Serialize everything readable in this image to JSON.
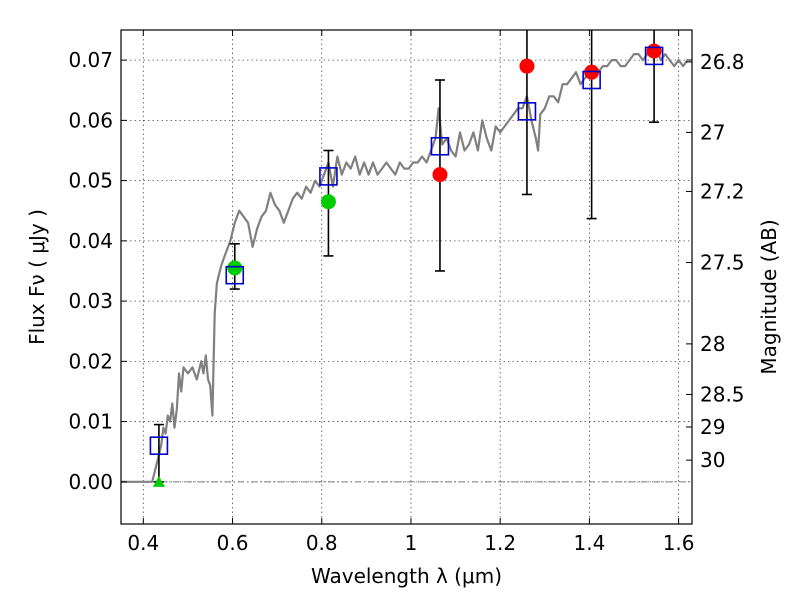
{
  "chart_data": {
    "type": "scatter",
    "title": "",
    "xlabel": "Wavelength  λ (μm)",
    "ylabel": "Flux  Fν  ( μJy )",
    "ylabel_right": "Magnitude (AB)",
    "xlim": [
      0.35,
      1.63
    ],
    "ylim": [
      -0.007,
      0.075
    ],
    "grid": true,
    "xticks": [
      0.4,
      0.6,
      0.8,
      1.0,
      1.2,
      1.4,
      1.6
    ],
    "xtick_labels": [
      "0.4",
      "0.6",
      "0.8",
      "1",
      "1.2",
      "1.4",
      "1.6"
    ],
    "yticks": [
      0.0,
      0.01,
      0.02,
      0.03,
      0.04,
      0.05,
      0.06,
      0.07
    ],
    "ytick_labels": [
      "0.00",
      "0.01",
      "0.02",
      "0.03",
      "0.04",
      "0.05",
      "0.06",
      "0.07"
    ],
    "right_ticks": [
      {
        "label": "26.8",
        "flux": 0.0697
      },
      {
        "label": "27",
        "flux": 0.058
      },
      {
        "label": "27.2",
        "flux": 0.0482
      },
      {
        "label": "27.5",
        "flux": 0.0364
      },
      {
        "label": "28",
        "flux": 0.0229
      },
      {
        "label": "28.5",
        "flux": 0.0145
      },
      {
        "label": "29",
        "flux": 0.0091
      },
      {
        "label": "30",
        "flux": 0.0036
      }
    ],
    "model_spectrum": {
      "color": "#808080",
      "points": [
        [
          0.35,
          0.0
        ],
        [
          0.41,
          0.0
        ],
        [
          0.42,
          0.0
        ],
        [
          0.43,
          0.003
        ],
        [
          0.44,
          0.006
        ],
        [
          0.445,
          0.009
        ],
        [
          0.45,
          0.008
        ],
        [
          0.455,
          0.011
        ],
        [
          0.46,
          0.01
        ],
        [
          0.465,
          0.013
        ],
        [
          0.47,
          0.009
        ],
        [
          0.475,
          0.012
        ],
        [
          0.48,
          0.018
        ],
        [
          0.485,
          0.015
        ],
        [
          0.49,
          0.019
        ],
        [
          0.5,
          0.018
        ],
        [
          0.51,
          0.019
        ],
        [
          0.52,
          0.017
        ],
        [
          0.53,
          0.02
        ],
        [
          0.535,
          0.018
        ],
        [
          0.54,
          0.021
        ],
        [
          0.545,
          0.017
        ],
        [
          0.55,
          0.016
        ],
        [
          0.555,
          0.011
        ],
        [
          0.56,
          0.028
        ],
        [
          0.565,
          0.033
        ],
        [
          0.575,
          0.036
        ],
        [
          0.585,
          0.038
        ],
        [
          0.595,
          0.04
        ],
        [
          0.605,
          0.043
        ],
        [
          0.615,
          0.045
        ],
        [
          0.625,
          0.044
        ],
        [
          0.635,
          0.043
        ],
        [
          0.645,
          0.039
        ],
        [
          0.655,
          0.042
        ],
        [
          0.665,
          0.044
        ],
        [
          0.675,
          0.045
        ],
        [
          0.685,
          0.048
        ],
        [
          0.695,
          0.046
        ],
        [
          0.705,
          0.045
        ],
        [
          0.715,
          0.043
        ],
        [
          0.725,
          0.045
        ],
        [
          0.735,
          0.047
        ],
        [
          0.745,
          0.048
        ],
        [
          0.755,
          0.047
        ],
        [
          0.765,
          0.049
        ],
        [
          0.775,
          0.048
        ],
        [
          0.785,
          0.05
        ],
        [
          0.795,
          0.049
        ],
        [
          0.805,
          0.051
        ],
        [
          0.815,
          0.053
        ],
        [
          0.825,
          0.049
        ],
        [
          0.835,
          0.054
        ],
        [
          0.845,
          0.051
        ],
        [
          0.855,
          0.053
        ],
        [
          0.865,
          0.052
        ],
        [
          0.875,
          0.054
        ],
        [
          0.885,
          0.051
        ],
        [
          0.895,
          0.053
        ],
        [
          0.905,
          0.051
        ],
        [
          0.915,
          0.053
        ],
        [
          0.925,
          0.051
        ],
        [
          0.935,
          0.052
        ],
        [
          0.945,
          0.053
        ],
        [
          0.955,
          0.052
        ],
        [
          0.965,
          0.051
        ],
        [
          0.975,
          0.053
        ],
        [
          0.985,
          0.052
        ],
        [
          0.995,
          0.052
        ],
        [
          1.005,
          0.053
        ],
        [
          1.015,
          0.053
        ],
        [
          1.025,
          0.054
        ],
        [
          1.035,
          0.053
        ],
        [
          1.045,
          0.055
        ],
        [
          1.055,
          0.057
        ],
        [
          1.062,
          0.062
        ],
        [
          1.07,
          0.056
        ],
        [
          1.08,
          0.057
        ],
        [
          1.09,
          0.055
        ],
        [
          1.1,
          0.054
        ],
        [
          1.11,
          0.058
        ],
        [
          1.12,
          0.055
        ],
        [
          1.13,
          0.056
        ],
        [
          1.14,
          0.058
        ],
        [
          1.15,
          0.055
        ],
        [
          1.16,
          0.06
        ],
        [
          1.17,
          0.057
        ],
        [
          1.18,
          0.055
        ],
        [
          1.19,
          0.059
        ],
        [
          1.2,
          0.058
        ],
        [
          1.21,
          0.059
        ],
        [
          1.22,
          0.06
        ],
        [
          1.23,
          0.061
        ],
        [
          1.24,
          0.062
        ],
        [
          1.25,
          0.062
        ],
        [
          1.26,
          0.064
        ],
        [
          1.265,
          0.062
        ],
        [
          1.27,
          0.06
        ],
        [
          1.28,
          0.057
        ],
        [
          1.285,
          0.055
        ],
        [
          1.29,
          0.061
        ],
        [
          1.3,
          0.062
        ],
        [
          1.31,
          0.064
        ],
        [
          1.32,
          0.064
        ],
        [
          1.33,
          0.063
        ],
        [
          1.34,
          0.066
        ],
        [
          1.35,
          0.066
        ],
        [
          1.36,
          0.067
        ],
        [
          1.37,
          0.068
        ],
        [
          1.38,
          0.066
        ],
        [
          1.39,
          0.067
        ],
        [
          1.4,
          0.068
        ],
        [
          1.41,
          0.069
        ],
        [
          1.42,
          0.068
        ],
        [
          1.43,
          0.069
        ],
        [
          1.44,
          0.069
        ],
        [
          1.45,
          0.07
        ],
        [
          1.46,
          0.07
        ],
        [
          1.47,
          0.069
        ],
        [
          1.48,
          0.069
        ],
        [
          1.49,
          0.07
        ],
        [
          1.5,
          0.071
        ],
        [
          1.51,
          0.071
        ],
        [
          1.52,
          0.07
        ],
        [
          1.53,
          0.071
        ],
        [
          1.54,
          0.072
        ],
        [
          1.55,
          0.072
        ],
        [
          1.56,
          0.07
        ],
        [
          1.57,
          0.071
        ],
        [
          1.58,
          0.07
        ],
        [
          1.59,
          0.069
        ],
        [
          1.6,
          0.07
        ],
        [
          1.61,
          0.069
        ],
        [
          1.62,
          0.07
        ],
        [
          1.63,
          0.07
        ]
      ]
    },
    "observed_points": {
      "color": "#000000",
      "points": [
        {
          "x": 0.435,
          "y": 0.0065,
          "lo": 0.0,
          "hi": 0.0095
        },
        {
          "x": 0.605,
          "y": 0.0355,
          "lo": 0.032,
          "hi": 0.0395
        },
        {
          "x": 0.815,
          "y": 0.0465,
          "lo": 0.0375,
          "hi": 0.055
        },
        {
          "x": 1.065,
          "y": 0.051,
          "lo": 0.035,
          "hi": 0.0667
        },
        {
          "x": 1.26,
          "y": 0.069,
          "lo": 0.0477,
          "hi": 0.075
        },
        {
          "x": 1.405,
          "y": 0.068,
          "lo": 0.0437,
          "hi": 0.075
        },
        {
          "x": 1.545,
          "y": 0.0715,
          "lo": 0.0597,
          "hi": 0.075
        }
      ]
    },
    "model_photometry": {
      "color": "#0000cc",
      "points": [
        {
          "x": 0.435,
          "y": 0.006
        },
        {
          "x": 0.605,
          "y": 0.0343
        },
        {
          "x": 0.815,
          "y": 0.0507
        },
        {
          "x": 1.065,
          "y": 0.0557
        },
        {
          "x": 1.26,
          "y": 0.0615
        },
        {
          "x": 1.405,
          "y": 0.0667
        },
        {
          "x": 1.545,
          "y": 0.0707
        }
      ]
    },
    "green_markers": {
      "color": "#00cc00",
      "points": [
        {
          "x": 0.605,
          "y": 0.0355,
          "marker": "circle"
        },
        {
          "x": 0.815,
          "y": 0.0465,
          "marker": "circle"
        },
        {
          "x": 0.435,
          "y": 0.0,
          "marker": "triangle"
        }
      ]
    },
    "red_markers": {
      "color": "#ff0000",
      "points": [
        {
          "x": 1.065,
          "y": 0.051
        },
        {
          "x": 1.26,
          "y": 0.069
        },
        {
          "x": 1.405,
          "y": 0.068
        },
        {
          "x": 1.545,
          "y": 0.0715
        }
      ]
    },
    "zero_line": {
      "y": 0.0,
      "color": "#808080"
    }
  }
}
